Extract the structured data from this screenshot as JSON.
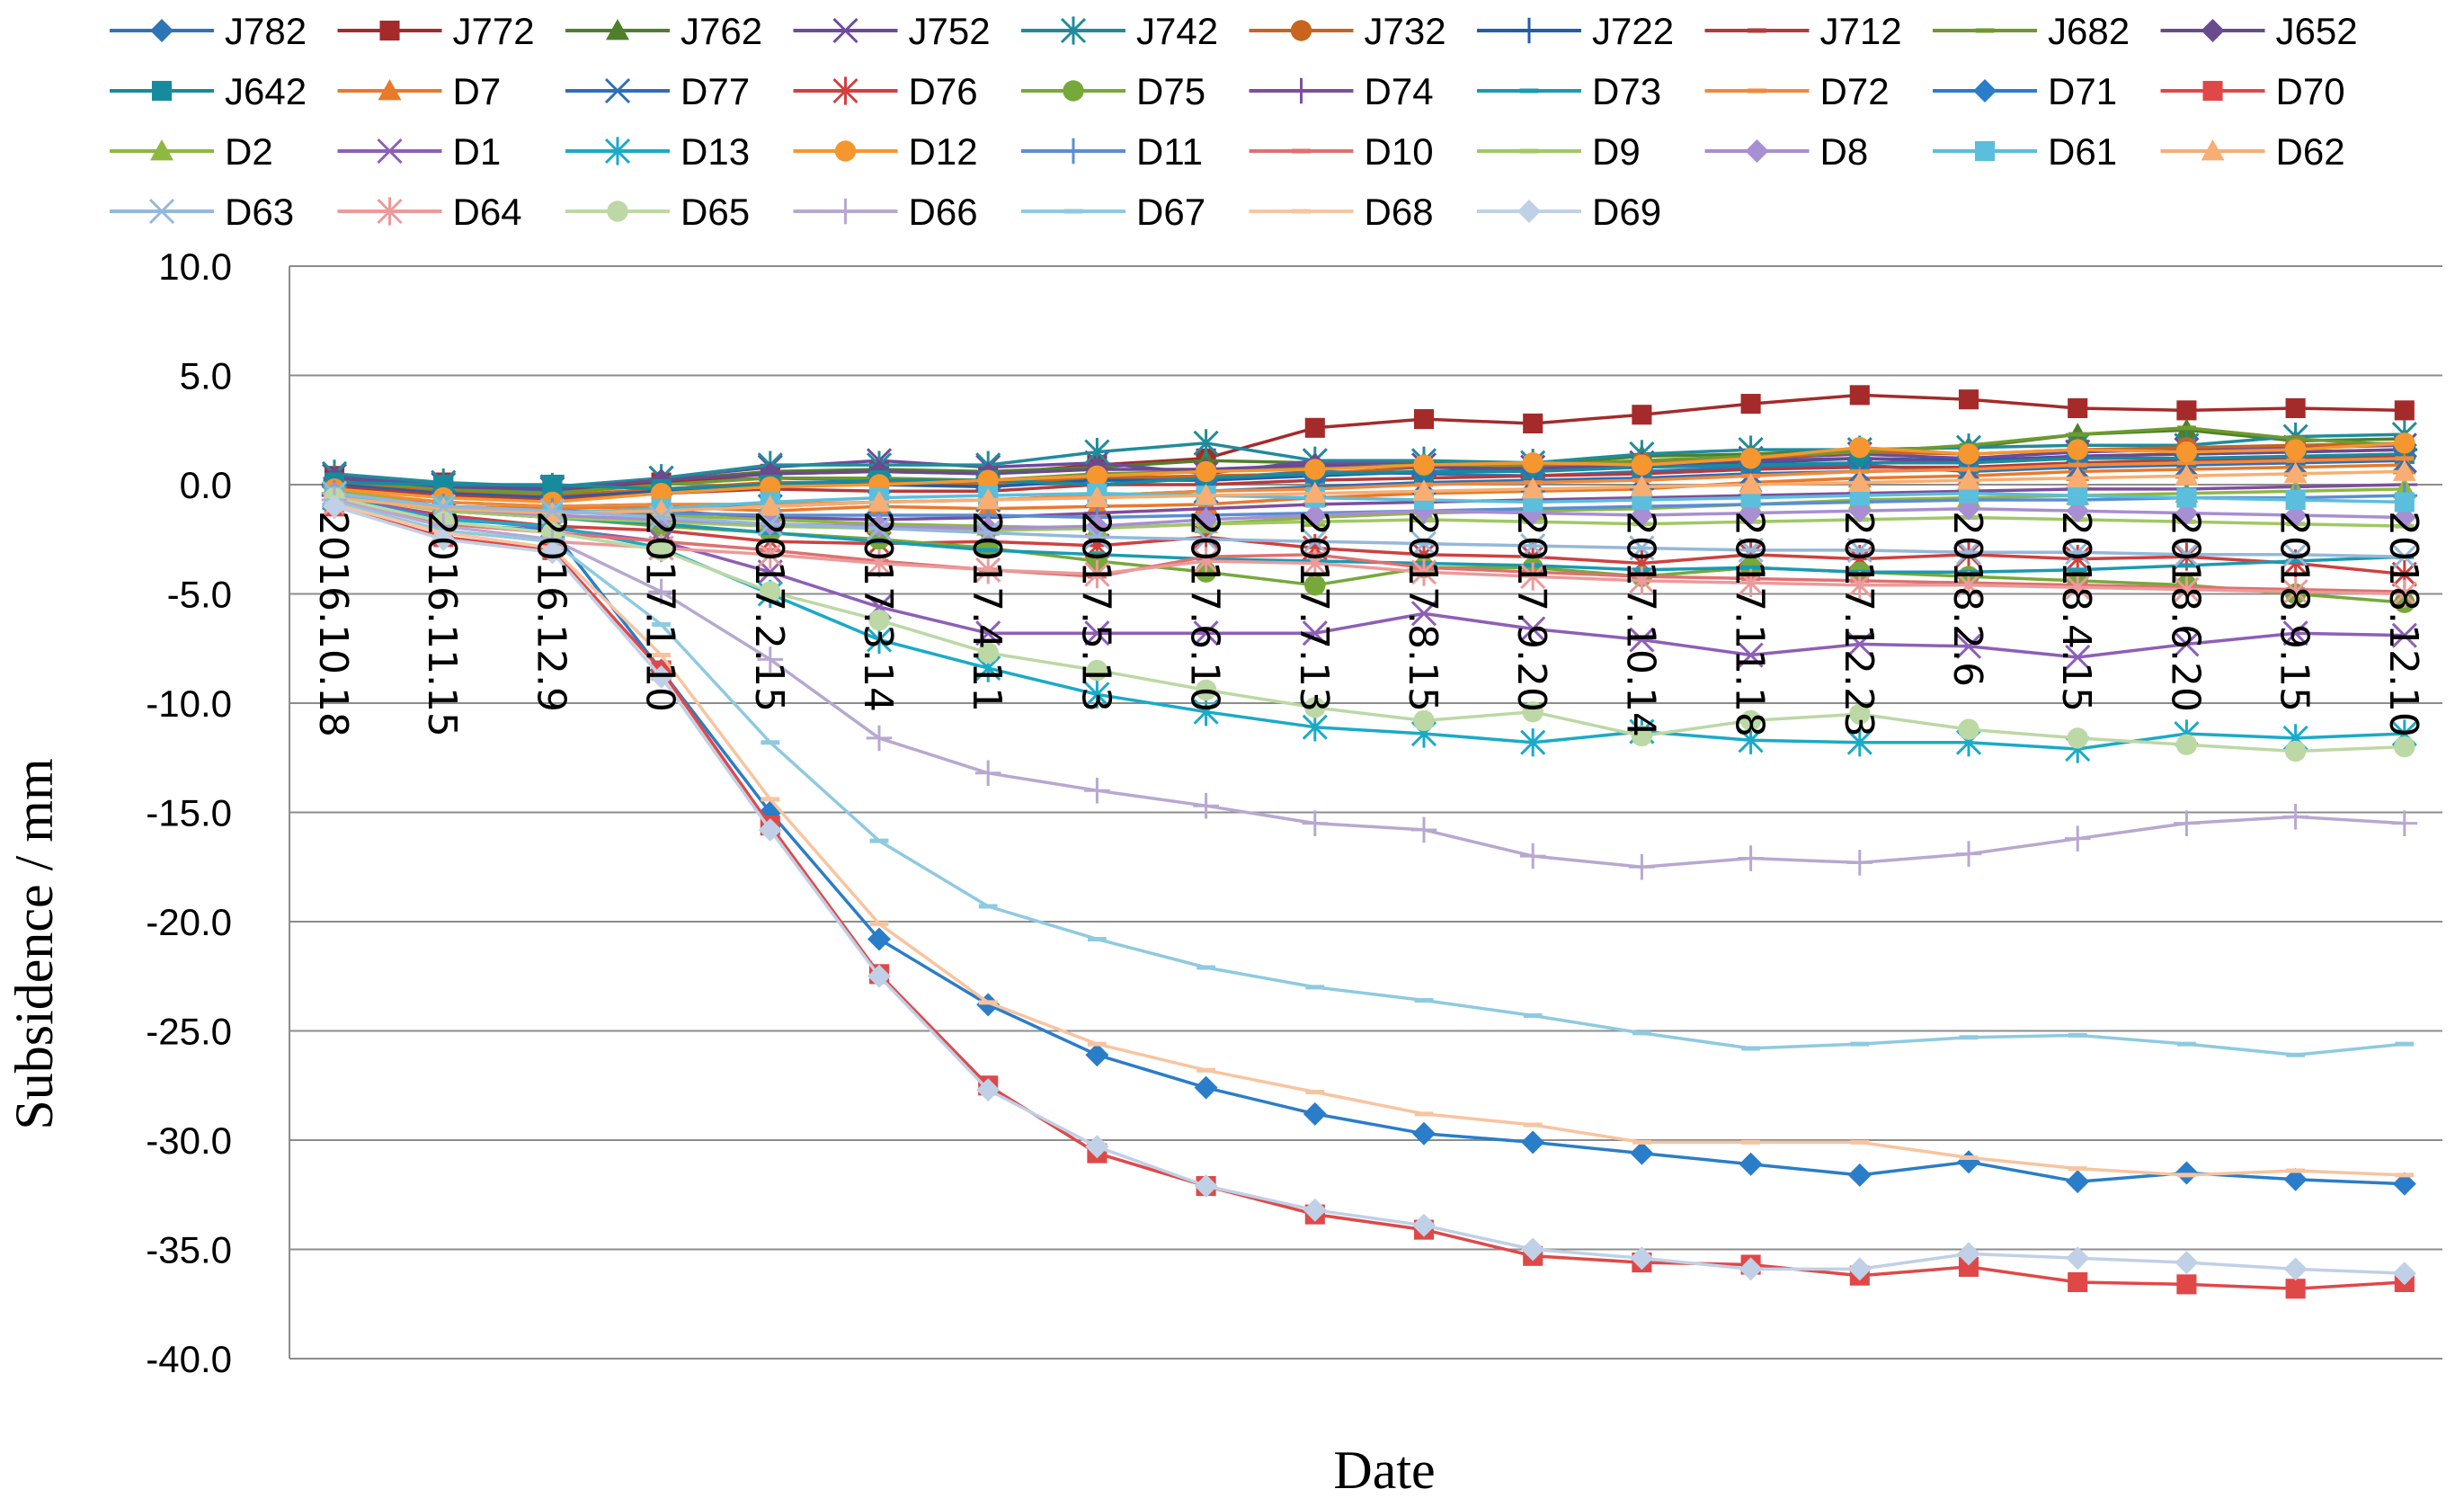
{
  "chart_data": {
    "type": "line",
    "title": "",
    "xlabel": "Date",
    "ylabel": "Subsidence / mm",
    "ylim": [
      -40,
      10
    ],
    "y_ticks": [
      "10.0",
      "5.0",
      "0.0",
      "-5.0",
      "-10.0",
      "-15.0",
      "-20.0",
      "-25.0",
      "-30.0",
      "-35.0",
      "-40.0"
    ],
    "categories": [
      "2016.10.18",
      "2016.11.15",
      "2016.12.9",
      "2017.1.10",
      "2017.2.15",
      "2017.3.14",
      "2017.4.11",
      "2017.5.13",
      "2017.6.10",
      "2017.7.13",
      "2017.8.15",
      "2017.9.20",
      "2017.10.14",
      "2017.11.18",
      "2017.12.23",
      "2018.2.6",
      "2018.4.15",
      "2018.6.20",
      "2018.9.15",
      "2018.12.10"
    ],
    "grid": true,
    "legend_position": "top",
    "series": [
      {
        "name": "J782",
        "color": "#2E75B6",
        "marker": "diamond",
        "values": [
          0.2,
          -0.2,
          -0.3,
          0.1,
          0.3,
          0.2,
          0.1,
          0.4,
          0.3,
          0.6,
          0.5,
          0.4,
          0.6,
          0.8,
          0.9,
          0.6,
          0.8,
          1.0,
          1.1,
          1.2
        ]
      },
      {
        "name": "J772",
        "color": "#A52A2A",
        "marker": "square",
        "values": [
          0.4,
          0.1,
          -0.2,
          0.1,
          0.5,
          0.6,
          0.5,
          0.9,
          1.2,
          2.6,
          3.0,
          2.8,
          3.2,
          3.7,
          4.1,
          3.9,
          3.5,
          3.4,
          3.5,
          3.4
        ]
      },
      {
        "name": "J762",
        "color": "#4F7F2A",
        "marker": "triangle",
        "values": [
          0.3,
          0.0,
          -0.1,
          0.2,
          0.6,
          0.7,
          0.6,
          0.8,
          1.1,
          1.0,
          1.0,
          0.9,
          1.3,
          1.4,
          1.6,
          1.7,
          2.3,
          2.5,
          2.0,
          2.1
        ]
      },
      {
        "name": "J752",
        "color": "#6E4A9E",
        "marker": "x",
        "values": [
          0.4,
          0.0,
          -0.2,
          0.3,
          0.8,
          1.1,
          0.8,
          1.0,
          0.5,
          1.1,
          0.9,
          0.8,
          1.0,
          1.2,
          1.4,
          1.2,
          1.5,
          1.6,
          1.7,
          1.8
        ]
      },
      {
        "name": "J742",
        "color": "#1F8C9C",
        "marker": "star",
        "values": [
          0.5,
          0.1,
          -0.1,
          0.3,
          0.9,
          0.9,
          0.9,
          1.5,
          1.9,
          1.1,
          1.1,
          1.0,
          1.4,
          1.6,
          1.6,
          1.7,
          1.8,
          1.8,
          2.2,
          2.3
        ]
      },
      {
        "name": "J732",
        "color": "#C8641E",
        "marker": "circle",
        "values": [
          0.1,
          -0.3,
          -0.5,
          -0.2,
          0.1,
          0.1,
          0.0,
          0.3,
          0.4,
          0.5,
          0.8,
          0.9,
          1.0,
          1.2,
          1.5,
          1.4,
          1.6,
          1.7,
          1.8,
          1.9
        ]
      },
      {
        "name": "J722",
        "color": "#1F5FA8",
        "marker": "plus",
        "values": [
          0.0,
          -0.4,
          -0.6,
          -0.3,
          0.0,
          0.0,
          -0.1,
          0.2,
          0.2,
          0.4,
          0.6,
          0.7,
          0.9,
          1.0,
          1.2,
          1.1,
          1.3,
          1.4,
          1.5,
          1.6
        ]
      },
      {
        "name": "J712",
        "color": "#B53A3A",
        "marker": "dash",
        "values": [
          -0.1,
          -0.5,
          -0.7,
          -0.4,
          -0.2,
          -0.3,
          -0.3,
          0.0,
          0.0,
          0.2,
          0.3,
          0.4,
          0.5,
          0.7,
          0.8,
          0.8,
          1.0,
          1.1,
          1.2,
          1.3
        ]
      },
      {
        "name": "J682",
        "color": "#6E9A2E",
        "marker": "dash",
        "values": [
          0.2,
          -0.2,
          -0.4,
          0.0,
          0.3,
          0.3,
          0.2,
          0.5,
          0.6,
          0.8,
          0.9,
          0.9,
          1.1,
          1.3,
          1.5,
          1.8,
          2.3,
          2.6,
          2.1,
          1.8
        ]
      },
      {
        "name": "J652",
        "color": "#6A4A8E",
        "marker": "diamond",
        "values": [
          0.3,
          -0.1,
          -0.2,
          0.2,
          0.5,
          0.6,
          0.5,
          0.7,
          0.7,
          0.9,
          0.8,
          0.7,
          0.9,
          1.1,
          1.2,
          1.0,
          1.3,
          1.4,
          1.5,
          1.6
        ]
      },
      {
        "name": "J642",
        "color": "#178B9E",
        "marker": "square",
        "values": [
          0.1,
          0.0,
          0.0,
          -0.2,
          0.0,
          0.2,
          0.2,
          0.0,
          0.3,
          0.5,
          0.6,
          0.6,
          0.8,
          0.9,
          1.0,
          1.0,
          1.2,
          1.2,
          1.3,
          1.4
        ]
      },
      {
        "name": "D7",
        "color": "#E87A2A",
        "marker": "triangle",
        "values": [
          -0.5,
          -1.0,
          -1.1,
          -1.0,
          -1.2,
          -1.0,
          -1.1,
          -1.0,
          -0.9,
          -0.6,
          -0.4,
          -0.3,
          -0.2,
          0.1,
          0.3,
          0.4,
          0.6,
          0.7,
          0.8,
          0.9
        ]
      },
      {
        "name": "D77",
        "color": "#2E6FB8",
        "marker": "x",
        "values": [
          -0.4,
          -0.8,
          -1.0,
          -0.9,
          -1.0,
          -0.8,
          -0.7,
          -0.5,
          -0.3,
          -0.1,
          0.1,
          0.2,
          0.3,
          0.5,
          0.6,
          0.7,
          0.8,
          0.9,
          1.0,
          1.1
        ]
      },
      {
        "name": "D76",
        "color": "#D04040",
        "marker": "star",
        "values": [
          -0.6,
          -1.4,
          -1.9,
          -2.1,
          -2.6,
          -2.7,
          -2.6,
          -2.8,
          -2.4,
          -2.9,
          -3.2,
          -3.3,
          -3.6,
          -3.2,
          -3.4,
          -3.2,
          -3.4,
          -3.3,
          -3.6,
          -4.1
        ]
      },
      {
        "name": "D75",
        "color": "#77A83A",
        "marker": "circle",
        "values": [
          -0.4,
          -1.2,
          -1.5,
          -1.9,
          -2.2,
          -2.5,
          -2.9,
          -3.5,
          -4.0,
          -4.6,
          -3.8,
          -3.8,
          -4.2,
          -3.8,
          -4.0,
          -4.2,
          -4.4,
          -4.6,
          -5.0,
          -5.4
        ]
      },
      {
        "name": "D74",
        "color": "#7E4E9E",
        "marker": "plus",
        "values": [
          -0.5,
          -1.1,
          -1.3,
          -1.2,
          -1.5,
          -1.6,
          -1.5,
          -1.3,
          -1.1,
          -0.9,
          -0.8,
          -0.7,
          -0.6,
          -0.5,
          -0.4,
          -0.3,
          -0.2,
          -0.2,
          -0.1,
          0.0
        ]
      },
      {
        "name": "D73",
        "color": "#1A9AB2",
        "marker": "dash",
        "values": [
          -0.5,
          -1.2,
          -1.5,
          -1.8,
          -2.2,
          -2.6,
          -3.0,
          -3.2,
          -3.4,
          -3.5,
          -3.6,
          -3.7,
          -3.9,
          -3.8,
          -4.0,
          -4.0,
          -3.9,
          -3.7,
          -3.5,
          -3.3
        ]
      },
      {
        "name": "D72",
        "color": "#F08A3A",
        "marker": "dash",
        "values": [
          -0.3,
          -0.8,
          -1.0,
          -0.9,
          -0.9,
          -0.8,
          -0.7,
          -0.5,
          -0.3,
          -0.2,
          0.0,
          0.1,
          0.2,
          0.4,
          0.6,
          0.7,
          0.9,
          1.0,
          1.1,
          1.2
        ]
      },
      {
        "name": "D71",
        "color": "#2A7DC8",
        "marker": "diamond",
        "values": [
          -0.7,
          -1.8,
          -2.1,
          -8.5,
          -15.0,
          -20.8,
          -23.8,
          -26.1,
          -27.6,
          -28.8,
          -29.7,
          -30.1,
          -30.6,
          -31.1,
          -31.6,
          -31.0,
          -31.9,
          -31.5,
          -31.8,
          -32.0
        ]
      },
      {
        "name": "D70",
        "color": "#E04848",
        "marker": "square",
        "values": [
          -1.0,
          -2.4,
          -3.0,
          -8.5,
          -15.6,
          -22.4,
          -27.5,
          -30.6,
          -32.1,
          -33.4,
          -34.1,
          -35.3,
          -35.6,
          -35.7,
          -36.2,
          -35.8,
          -36.5,
          -36.6,
          -36.8,
          -36.5
        ]
      },
      {
        "name": "D2",
        "color": "#8EB840",
        "marker": "triangle",
        "values": [
          -0.3,
          -1.0,
          -1.2,
          -1.4,
          -1.6,
          -1.8,
          -1.9,
          -2.0,
          -1.8,
          -1.5,
          -1.3,
          -1.2,
          -1.1,
          -0.9,
          -0.7,
          -0.6,
          -0.5,
          -0.4,
          -0.3,
          -0.2
        ]
      },
      {
        "name": "D1",
        "color": "#8E5EB8",
        "marker": "x",
        "values": [
          -0.5,
          -1.5,
          -2.0,
          -2.6,
          -4.0,
          -5.6,
          -6.8,
          -6.8,
          -6.8,
          -6.8,
          -5.9,
          -6.6,
          -7.1,
          -7.8,
          -7.3,
          -7.4,
          -7.9,
          -7.3,
          -6.8,
          -6.9
        ]
      },
      {
        "name": "D13",
        "color": "#1AAAC8",
        "marker": "star",
        "values": [
          -0.6,
          -1.6,
          -1.9,
          -2.9,
          -5.0,
          -7.1,
          -8.4,
          -9.6,
          -10.4,
          -11.1,
          -11.4,
          -11.8,
          -11.3,
          -11.7,
          -11.8,
          -11.8,
          -12.1,
          -11.4,
          -11.6,
          -11.4
        ]
      },
      {
        "name": "D12",
        "color": "#F5962E",
        "marker": "circle",
        "values": [
          -0.2,
          -0.6,
          -0.8,
          -0.4,
          -0.1,
          0.0,
          0.2,
          0.4,
          0.6,
          0.7,
          0.9,
          1.0,
          0.9,
          1.2,
          1.7,
          1.4,
          1.6,
          1.5,
          1.6,
          1.9
        ]
      },
      {
        "name": "D11",
        "color": "#5A8ED2",
        "marker": "plus",
        "values": [
          -0.4,
          -1.0,
          -1.2,
          -1.3,
          -1.4,
          -1.4,
          -1.4,
          -1.5,
          -1.4,
          -1.3,
          -1.2,
          -1.1,
          -1.0,
          -0.9,
          -0.8,
          -0.7,
          -0.7,
          -0.6,
          -0.6,
          -0.5
        ]
      },
      {
        "name": "D10",
        "color": "#E07070",
        "marker": "dash",
        "values": [
          -0.8,
          -1.8,
          -2.2,
          -2.6,
          -3.0,
          -3.5,
          -3.9,
          -4.2,
          -3.3,
          -3.2,
          -3.8,
          -4.0,
          -4.2,
          -4.3,
          -4.4,
          -4.5,
          -4.6,
          -4.7,
          -4.8,
          -4.9
        ]
      },
      {
        "name": "D9",
        "color": "#A0C864",
        "marker": "dash",
        "values": [
          -0.5,
          -1.2,
          -1.5,
          -1.7,
          -1.9,
          -2.0,
          -2.1,
          -2.0,
          -1.8,
          -1.7,
          -1.6,
          -1.7,
          -1.8,
          -1.7,
          -1.6,
          -1.5,
          -1.6,
          -1.7,
          -1.8,
          -1.9
        ]
      },
      {
        "name": "D8",
        "color": "#A88ED2",
        "marker": "diamond",
        "values": [
          -0.4,
          -1.1,
          -1.4,
          -1.6,
          -1.8,
          -1.9,
          -2.0,
          -1.9,
          -1.6,
          -1.4,
          -1.2,
          -1.3,
          -1.4,
          -1.3,
          -1.2,
          -1.1,
          -1.2,
          -1.3,
          -1.4,
          -1.5
        ]
      },
      {
        "name": "D61",
        "color": "#5ABEDC",
        "marker": "square",
        "values": [
          -0.5,
          -1.0,
          -1.3,
          -1.1,
          -0.8,
          -0.6,
          -0.5,
          -0.4,
          -0.5,
          -0.6,
          -0.7,
          -0.8,
          -0.7,
          -0.6,
          -0.5,
          -0.4,
          -0.5,
          -0.6,
          -0.7,
          -0.8
        ]
      },
      {
        "name": "D62",
        "color": "#F8AE72",
        "marker": "triangle",
        "values": [
          -0.6,
          -1.1,
          -1.3,
          -1.2,
          -1.0,
          -0.8,
          -0.7,
          -0.6,
          -0.5,
          -0.4,
          -0.3,
          -0.2,
          -0.1,
          0.0,
          0.1,
          0.2,
          0.3,
          0.4,
          0.5,
          0.6
        ]
      },
      {
        "name": "D63",
        "color": "#94B8DA",
        "marker": "x",
        "values": [
          -0.4,
          -1.0,
          -1.2,
          -1.5,
          -1.8,
          -2.0,
          -2.2,
          -2.4,
          -2.5,
          -2.6,
          -2.7,
          -2.8,
          -2.9,
          -3.0,
          -3.0,
          -3.1,
          -3.1,
          -3.2,
          -3.2,
          -3.3
        ]
      },
      {
        "name": "D64",
        "color": "#EC9A9A",
        "marker": "star",
        "values": [
          -0.9,
          -2.1,
          -2.6,
          -2.9,
          -3.2,
          -3.6,
          -3.9,
          -4.1,
          -3.5,
          -3.6,
          -4.0,
          -4.2,
          -4.4,
          -4.5,
          -4.6,
          -4.6,
          -4.7,
          -4.8,
          -4.9,
          -5.0
        ]
      },
      {
        "name": "D65",
        "color": "#BCD8A4",
        "marker": "circle",
        "values": [
          -0.6,
          -1.7,
          -2.2,
          -3.0,
          -4.9,
          -6.2,
          -7.7,
          -8.5,
          -9.4,
          -10.2,
          -10.8,
          -10.4,
          -11.5,
          -10.8,
          -10.5,
          -11.2,
          -11.6,
          -11.9,
          -12.2,
          -12.0
        ]
      },
      {
        "name": "D66",
        "color": "#B8A8D0",
        "marker": "plus",
        "values": [
          -0.7,
          -1.9,
          -2.5,
          -4.9,
          -8.0,
          -11.6,
          -13.2,
          -14.0,
          -14.7,
          -15.5,
          -15.8,
          -17.0,
          -17.5,
          -17.1,
          -17.3,
          -16.9,
          -16.2,
          -15.5,
          -15.2,
          -15.5
        ]
      },
      {
        "name": "D67",
        "color": "#8ECAE0",
        "marker": "dash",
        "values": [
          -0.8,
          -2.1,
          -2.6,
          -6.4,
          -11.8,
          -16.3,
          -19.3,
          -20.8,
          -22.1,
          -23.0,
          -23.6,
          -24.3,
          -25.1,
          -25.8,
          -25.6,
          -25.3,
          -25.2,
          -25.6,
          -26.1,
          -25.6
        ]
      },
      {
        "name": "D68",
        "color": "#F8C4A0",
        "marker": "dash",
        "values": [
          -0.9,
          -2.2,
          -2.9,
          -7.8,
          -14.4,
          -20.1,
          -23.7,
          -25.6,
          -26.8,
          -27.8,
          -28.8,
          -29.3,
          -30.1,
          -30.1,
          -30.1,
          -30.8,
          -31.3,
          -31.6,
          -31.4,
          -31.6
        ]
      },
      {
        "name": "D69",
        "color": "#C0D0E6",
        "marker": "diamond",
        "values": [
          -1.0,
          -2.5,
          -3.1,
          -8.8,
          -15.8,
          -22.5,
          -27.7,
          -30.3,
          -32.1,
          -33.2,
          -33.9,
          -35.0,
          -35.4,
          -35.9,
          -35.9,
          -35.2,
          -35.4,
          -35.6,
          -35.9,
          -36.1
        ]
      }
    ]
  }
}
